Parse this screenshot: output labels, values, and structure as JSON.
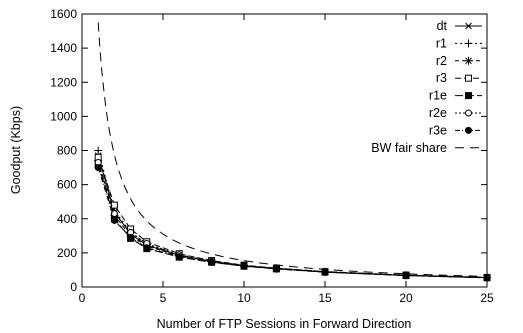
{
  "chart_data": {
    "type": "line",
    "xlabel": "Number of FTP Sessions in Forward Direction",
    "ylabel": "Goodput (Kbps)",
    "xlim": [
      0,
      25
    ],
    "ylim": [
      0,
      1600
    ],
    "xticks": [
      0,
      5,
      10,
      15,
      20,
      25
    ],
    "yticks": [
      0,
      200,
      400,
      600,
      800,
      1000,
      1200,
      1400,
      1600
    ],
    "grid": false,
    "legend_position": "top-right",
    "x": [
      1,
      2,
      3,
      4,
      6,
      8,
      10,
      12,
      15,
      20,
      25
    ],
    "series": [
      {
        "name": "dt",
        "marker": "x",
        "dash": "",
        "values": [
          770,
          440,
          310,
          245,
          185,
          150,
          125,
          108,
          88,
          68,
          55
        ]
      },
      {
        "name": "r1",
        "marker": "plus",
        "dash": "2,3",
        "values": [
          800,
          450,
          320,
          250,
          190,
          152,
          126,
          110,
          90,
          69,
          56
        ]
      },
      {
        "name": "r2",
        "marker": "star",
        "dash": "4,3",
        "values": [
          740,
          420,
          300,
          240,
          182,
          148,
          124,
          107,
          88,
          68,
          55
        ]
      },
      {
        "name": "r3",
        "marker": "square-open",
        "dash": "6,3",
        "values": [
          760,
          480,
          340,
          265,
          195,
          155,
          128,
          110,
          90,
          70,
          56
        ]
      },
      {
        "name": "r1e",
        "marker": "square-filled",
        "dash": "8,3",
        "values": [
          720,
          400,
          285,
          225,
          175,
          145,
          122,
          106,
          87,
          67,
          54
        ]
      },
      {
        "name": "r2e",
        "marker": "circle-open",
        "dash": "2,2",
        "values": [
          730,
          430,
          320,
          255,
          188,
          150,
          126,
          109,
          89,
          69,
          55
        ]
      },
      {
        "name": "r3e",
        "marker": "circle-filled",
        "dash": "5,2,1,2",
        "values": [
          700,
          390,
          290,
          230,
          178,
          146,
          122,
          106,
          87,
          67,
          54
        ]
      },
      {
        "name": "BW fair share",
        "marker": "none",
        "dash": "9,6",
        "values": [
          1550,
          775,
          517,
          388,
          258,
          194,
          155,
          129,
          103,
          78,
          62
        ]
      }
    ]
  }
}
